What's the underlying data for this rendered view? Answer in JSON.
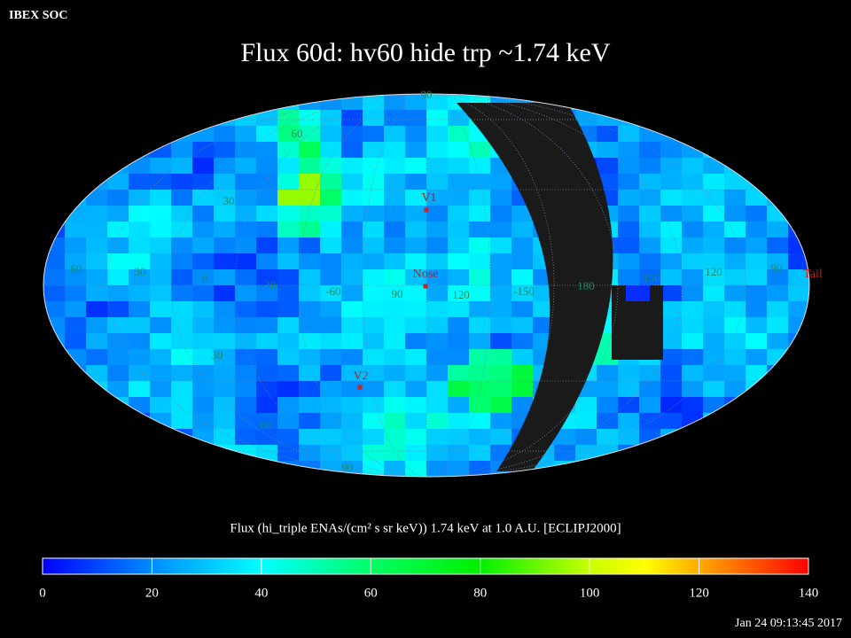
{
  "header": "IBEX SOC",
  "title": "Flux   60d: hv60 hide trp ~1.74 keV",
  "map": {
    "grid_labels": [
      "90",
      "60",
      "30",
      "60",
      "30",
      "0",
      "-30",
      "-60",
      "90",
      "120",
      "-150",
      "180",
      "150",
      "120",
      "90",
      "30",
      "60",
      "90"
    ],
    "markers": [
      "V1",
      "Nose",
      "V2",
      "Tail"
    ]
  },
  "colorbar": {
    "caption": "Flux (hi_triple ENAs/(cm² s sr keV))  1.74 keV at 1.0 A.U. [ECLIPJ2000]",
    "range": [
      0,
      140
    ],
    "ticks": [
      0,
      20,
      40,
      60,
      80,
      100,
      120,
      140
    ]
  },
  "timestamp": "Jan 24 09:13:45 2017"
}
